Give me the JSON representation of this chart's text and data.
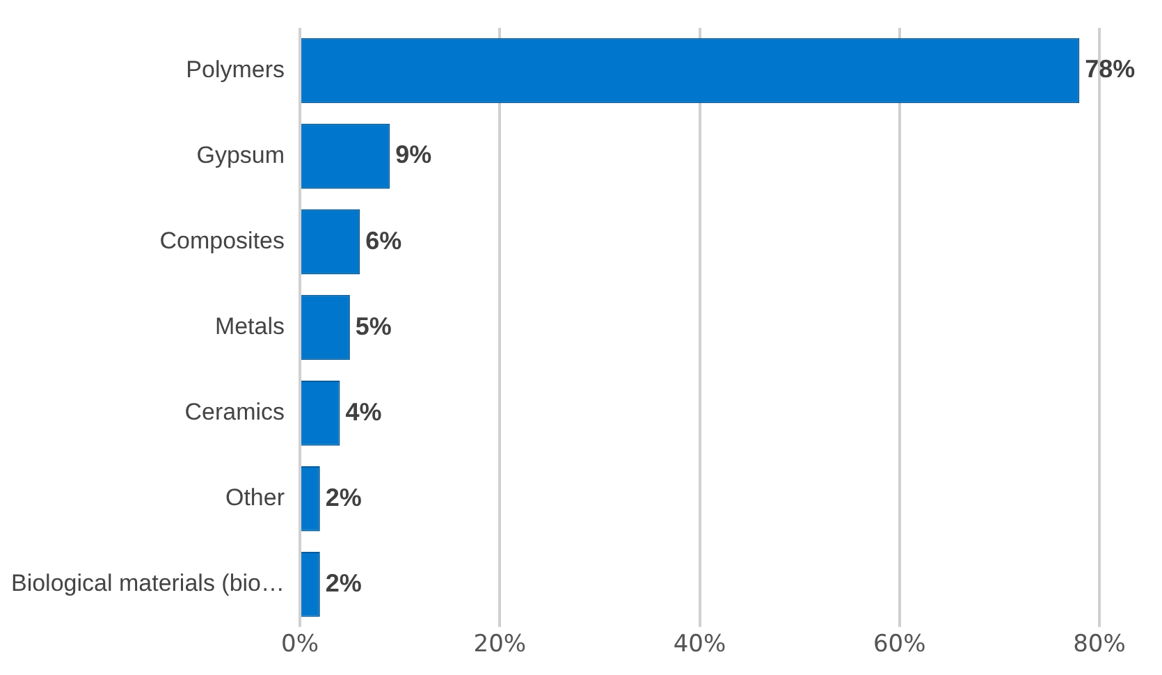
{
  "chart_data": {
    "type": "bar",
    "orientation": "horizontal",
    "categories": [
      "Polymers",
      "Gypsum",
      "Composites",
      "Metals",
      "Ceramics",
      "Other",
      "Biological materials (bio…"
    ],
    "values": [
      78,
      9,
      6,
      5,
      4,
      2,
      2
    ],
    "value_labels": [
      "78%",
      "9%",
      "6%",
      "5%",
      "4%",
      "2%",
      "2%"
    ],
    "color": "#0077cc",
    "xlim": [
      0,
      80
    ],
    "xticks": [
      {
        "value": 0,
        "label": "0%"
      },
      {
        "value": 20,
        "label": "20%"
      },
      {
        "value": 40,
        "label": "40%"
      },
      {
        "value": 60,
        "label": "60%"
      },
      {
        "value": 80,
        "label": "80%"
      }
    ],
    "grid": "x",
    "legend": false
  }
}
